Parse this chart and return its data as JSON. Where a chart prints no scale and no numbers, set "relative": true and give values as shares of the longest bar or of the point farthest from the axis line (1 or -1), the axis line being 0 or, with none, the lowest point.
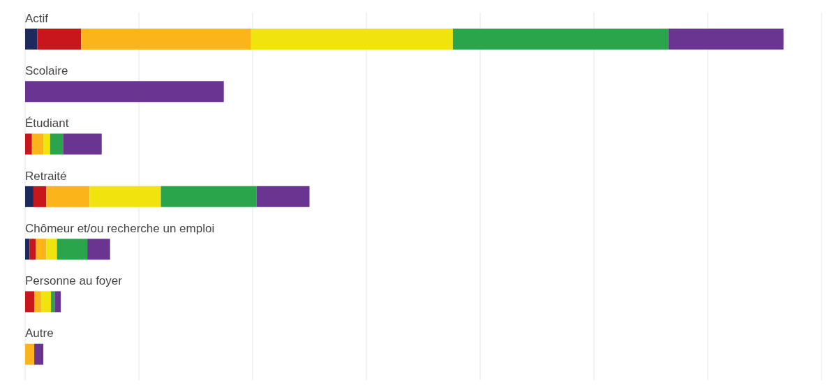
{
  "chart_data": {
    "type": "bar",
    "orientation": "horizontal",
    "stacked": true,
    "relative": true,
    "grid": "x",
    "legend": false,
    "categories": [
      "Actif",
      "Scolaire",
      "Étudiant",
      "Retraité",
      "Chômeur et/ou recherche un emploi",
      "Personne au foyer",
      "Autre"
    ],
    "series": [
      {
        "color": "#1f2a5c",
        "values": [
          0.016,
          null,
          null,
          0.011,
          0.006,
          null,
          null
        ]
      },
      {
        "color": "#c8161d",
        "values": [
          0.058,
          null,
          0.009,
          0.017,
          0.008,
          0.012,
          null
        ]
      },
      {
        "color": "#fbb41a",
        "values": [
          0.224,
          null,
          0.015,
          0.057,
          0.014,
          0.009,
          0.012
        ]
      },
      {
        "color": "#f0e30e",
        "values": [
          0.266,
          null,
          0.009,
          0.094,
          0.014,
          0.013,
          null
        ]
      },
      {
        "color": "#2aa54b",
        "values": [
          0.284,
          null,
          0.017,
          0.126,
          0.04,
          0.005,
          null
        ]
      },
      {
        "color": "#6a3590",
        "values": [
          0.152,
          0.262,
          0.051,
          0.07,
          0.03,
          0.008,
          0.012
        ]
      }
    ]
  }
}
